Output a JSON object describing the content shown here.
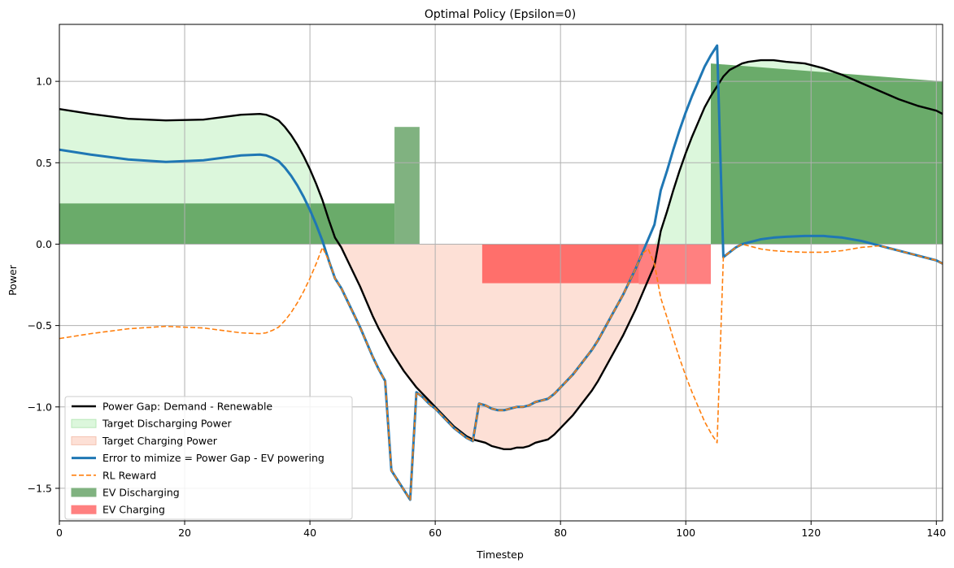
{
  "chart_data": {
    "type": "line",
    "title": "Optimal Policy (Epsilon=0)",
    "xlabel": "Timestep",
    "ylabel": "Power",
    "xlim": [
      0,
      141
    ],
    "ylim": [
      -1.7,
      1.35
    ],
    "xticks": [
      0,
      20,
      40,
      60,
      80,
      100,
      120,
      140
    ],
    "xtick_labels": [
      "0",
      "20",
      "40",
      "60",
      "80",
      "100",
      "120",
      "140"
    ],
    "yticks": [
      -1.5,
      -1.0,
      -0.5,
      0.0,
      0.5,
      1.0
    ],
    "ytick_labels": [
      "−1.5",
      "−1.0",
      "−0.5",
      "0.0",
      "0.5",
      "1.0"
    ],
    "grid": true,
    "legend_position": "lower-left",
    "colors": {
      "power_gap": "#000000",
      "target_discharging": "#dcf7dc",
      "target_charging": "#fde0d6",
      "error": "#1f77b4",
      "rl_reward": "#ff7f0e",
      "ev_discharging": "#6aab6a",
      "ev_discharging_light": "#80b280",
      "ev_charging": "#ff6f6b",
      "ev_charging_light": "#ff8080"
    },
    "legend": [
      {
        "label": "Power Gap: Demand - Renewable",
        "kind": "line",
        "color": "#000000"
      },
      {
        "label": "Target Discharging Power",
        "kind": "patch",
        "color": "#dcf7dc",
        "edge": "#b8e8b8"
      },
      {
        "label": "Target Charging Power",
        "kind": "patch",
        "color": "#fde0d6",
        "edge": "#f4c3b2"
      },
      {
        "label": "Error to mimize = Power Gap - EV powering",
        "kind": "thickline",
        "color": "#1f77b4"
      },
      {
        "label": "RL Reward",
        "kind": "dashed",
        "color": "#ff7f0e"
      },
      {
        "label": "EV Discharging",
        "kind": "patch",
        "color": "#80b280",
        "edge": "#80b280"
      },
      {
        "label": "EV Charging",
        "kind": "patch",
        "color": "#ff8080",
        "edge": "#ff8080"
      }
    ],
    "series": [
      {
        "name": "Power Gap: Demand - Renewable",
        "x": [
          0,
          5,
          11,
          17,
          23,
          29,
          32,
          33,
          34,
          35,
          36,
          37,
          38,
          39,
          40,
          41,
          42,
          43,
          44,
          45,
          46,
          47,
          48,
          49,
          50,
          51,
          52,
          53,
          54,
          55,
          56,
          57,
          58,
          59,
          60,
          61,
          62,
          63,
          64,
          65,
          66,
          67,
          68,
          69,
          70,
          71,
          72,
          73,
          74,
          75,
          76,
          77,
          78,
          79,
          80,
          81,
          82,
          83,
          84,
          85,
          86,
          87,
          88,
          89,
          90,
          91,
          92,
          93,
          94,
          95,
          96,
          97,
          98,
          99,
          100,
          101,
          102,
          103,
          104,
          105,
          106,
          107,
          108,
          109,
          110,
          112,
          114,
          116,
          119,
          122,
          125,
          128,
          131,
          134,
          137,
          140,
          141
        ],
        "y": [
          0.83,
          0.8,
          0.77,
          0.76,
          0.765,
          0.795,
          0.8,
          0.795,
          0.78,
          0.76,
          0.72,
          0.67,
          0.61,
          0.54,
          0.46,
          0.37,
          0.27,
          0.15,
          0.04,
          -0.02,
          -0.1,
          -0.18,
          -0.26,
          -0.35,
          -0.44,
          -0.52,
          -0.59,
          -0.66,
          -0.72,
          -0.78,
          -0.83,
          -0.88,
          -0.92,
          -0.96,
          -1.0,
          -1.04,
          -1.08,
          -1.12,
          -1.15,
          -1.18,
          -1.2,
          -1.21,
          -1.22,
          -1.24,
          -1.25,
          -1.26,
          -1.26,
          -1.25,
          -1.25,
          -1.24,
          -1.22,
          -1.21,
          -1.2,
          -1.17,
          -1.13,
          -1.09,
          -1.05,
          -1.0,
          -0.95,
          -0.9,
          -0.84,
          -0.77,
          -0.7,
          -0.63,
          -0.56,
          -0.48,
          -0.4,
          -0.31,
          -0.22,
          -0.13,
          0.08,
          0.2,
          0.33,
          0.45,
          0.56,
          0.66,
          0.75,
          0.84,
          0.91,
          0.97,
          1.03,
          1.07,
          1.09,
          1.11,
          1.12,
          1.13,
          1.13,
          1.12,
          1.11,
          1.08,
          1.04,
          0.99,
          0.94,
          0.89,
          0.85,
          0.82,
          0.8
        ]
      },
      {
        "name": "Error to mimize = Power Gap - EV powering",
        "x": [
          0,
          5,
          11,
          17,
          23,
          29,
          32,
          33,
          34,
          35,
          36,
          37,
          38,
          39,
          40,
          41,
          42,
          43,
          44,
          45,
          46,
          47,
          48,
          49,
          50,
          51,
          52,
          53,
          54,
          55,
          56,
          57,
          58,
          59,
          60,
          61,
          62,
          63,
          64,
          65,
          66,
          67,
          68,
          69,
          70,
          71,
          72,
          73,
          74,
          75,
          76,
          77,
          78,
          79,
          80,
          81,
          82,
          83,
          84,
          85,
          86,
          87,
          88,
          89,
          90,
          91,
          92,
          93,
          94,
          95,
          96,
          97,
          98,
          99,
          100,
          101,
          102,
          103,
          104,
          105,
          106,
          107,
          108,
          109,
          110,
          112,
          114,
          116,
          119,
          122,
          125,
          128,
          131,
          134,
          137,
          140,
          141
        ],
        "y": [
          0.58,
          0.55,
          0.52,
          0.505,
          0.515,
          0.545,
          0.55,
          0.545,
          0.53,
          0.51,
          0.47,
          0.42,
          0.36,
          0.29,
          0.21,
          0.12,
          0.02,
          -0.1,
          -0.21,
          -0.27,
          -0.35,
          -0.43,
          -0.51,
          -0.6,
          -0.69,
          -0.77,
          -0.84,
          -1.39,
          -1.45,
          -1.51,
          -1.57,
          -0.91,
          -0.94,
          -0.98,
          -1.01,
          -1.05,
          -1.09,
          -1.13,
          -1.16,
          -1.19,
          -1.21,
          -0.98,
          -0.99,
          -1.01,
          -1.02,
          -1.02,
          -1.01,
          -1.0,
          -1.0,
          -0.99,
          -0.97,
          -0.96,
          -0.95,
          -0.92,
          -0.88,
          -0.84,
          -0.8,
          -0.75,
          -0.7,
          -0.65,
          -0.59,
          -0.52,
          -0.45,
          -0.38,
          -0.31,
          -0.23,
          -0.15,
          -0.06,
          0.03,
          0.12,
          0.33,
          0.45,
          0.58,
          0.7,
          0.81,
          0.91,
          1.0,
          1.09,
          1.16,
          1.22,
          -0.08,
          -0.05,
          -0.02,
          0.0,
          0.01,
          0.03,
          0.04,
          0.045,
          0.05,
          0.05,
          0.04,
          0.02,
          -0.01,
          -0.04,
          -0.07,
          -0.1,
          -0.12
        ]
      },
      {
        "name": "RL Reward",
        "x": [
          0,
          5,
          11,
          17,
          23,
          29,
          32,
          33,
          34,
          35,
          36,
          37,
          38,
          39,
          40,
          41,
          42,
          43,
          44,
          45,
          46,
          47,
          48,
          49,
          50,
          51,
          52,
          53,
          54,
          55,
          56,
          57,
          58,
          59,
          60,
          61,
          62,
          63,
          64,
          65,
          66,
          67,
          68,
          69,
          70,
          71,
          72,
          73,
          74,
          75,
          76,
          77,
          78,
          79,
          80,
          81,
          82,
          83,
          84,
          85,
          86,
          87,
          88,
          89,
          90,
          91,
          92,
          93,
          94,
          95,
          96,
          97,
          98,
          99,
          100,
          101,
          102,
          103,
          104,
          105,
          106,
          107,
          108,
          109,
          110,
          112,
          114,
          116,
          119,
          122,
          125,
          128,
          131,
          134,
          137,
          140,
          141
        ],
        "y": [
          -0.58,
          -0.55,
          -0.52,
          -0.505,
          -0.515,
          -0.545,
          -0.55,
          -0.545,
          -0.53,
          -0.51,
          -0.47,
          -0.42,
          -0.36,
          -0.29,
          -0.21,
          -0.12,
          -0.02,
          -0.1,
          -0.21,
          -0.27,
          -0.35,
          -0.43,
          -0.51,
          -0.6,
          -0.69,
          -0.77,
          -0.84,
          -1.39,
          -1.45,
          -1.51,
          -1.57,
          -0.91,
          -0.94,
          -0.98,
          -1.01,
          -1.05,
          -1.09,
          -1.13,
          -1.16,
          -1.19,
          -1.21,
          -0.98,
          -0.99,
          -1.01,
          -1.02,
          -1.02,
          -1.01,
          -1.0,
          -1.0,
          -0.99,
          -0.97,
          -0.96,
          -0.95,
          -0.92,
          -0.88,
          -0.84,
          -0.8,
          -0.75,
          -0.7,
          -0.65,
          -0.59,
          -0.52,
          -0.45,
          -0.38,
          -0.31,
          -0.23,
          -0.15,
          -0.06,
          -0.03,
          -0.12,
          -0.33,
          -0.45,
          -0.58,
          -0.7,
          -0.81,
          -0.91,
          -1.0,
          -1.09,
          -1.16,
          -1.22,
          -0.08,
          -0.05,
          -0.02,
          0.0,
          -0.01,
          -0.03,
          -0.04,
          -0.045,
          -0.05,
          -0.05,
          -0.04,
          -0.02,
          -0.01,
          -0.04,
          -0.07,
          -0.1,
          -0.12
        ]
      }
    ],
    "ev_discharging": [
      {
        "x0": 0,
        "x1": 53.5,
        "y": 0.25,
        "shade": "dark"
      },
      {
        "x0": 53.5,
        "x1": 57.5,
        "y": 0.72,
        "shade": "light"
      },
      {
        "x0": 104,
        "x1": 141,
        "y0": 1.11,
        "y1": 1.0,
        "shade": "dark"
      }
    ],
    "ev_charging": [
      {
        "x0": 67.5,
        "x1": 92.5,
        "y": -0.24,
        "shade": "dark"
      },
      {
        "x0": 92.5,
        "x1": 104,
        "y": -0.245,
        "shade": "light"
      }
    ]
  }
}
